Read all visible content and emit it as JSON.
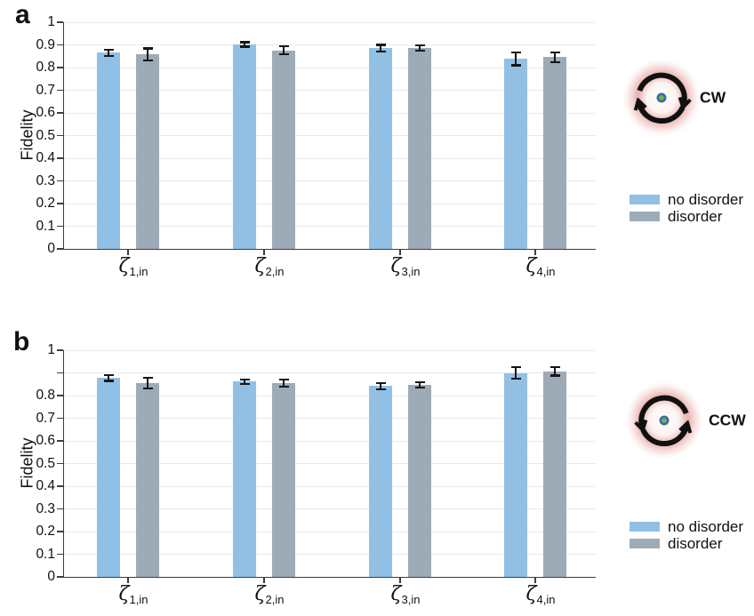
{
  "figure_type": "two-panel grouped bar chart with error bars",
  "error_bar_color": "#161616",
  "icons": {
    "cw": "circular-arrows-clockwise-with-red-glow",
    "ccw": "circular-arrows-counterclockwise-with-red-glow",
    "ring_color": "#111111",
    "glow_color": "#D5655F",
    "dot_outer_color": "#3D6CA5",
    "dot_inner_color": "#72B54A"
  },
  "chart_data": [
    {
      "type": "bar",
      "panel_label": "a",
      "rotation": "CW",
      "ylabel": "Fidelity",
      "ylim": [
        0,
        1
      ],
      "ytick_step": 0.1,
      "ytick_labels_top_down": [
        "1",
        "0.9",
        "0.8",
        "0.7",
        "0.6",
        "0.5",
        "0.4",
        "0.3",
        "0.2",
        "0.1",
        "0"
      ],
      "grid": true,
      "legend_position": "right",
      "categories": [
        {
          "base": "ζ",
          "sub": "1,in"
        },
        {
          "base": "ζ",
          "sub": "2,in"
        },
        {
          "base": "ζ",
          "sub": "3,in"
        },
        {
          "base": "ζ",
          "sub": "4,in"
        }
      ],
      "series": [
        {
          "name": "no disorder",
          "color": "#92C0E5",
          "values": [
            0.865,
            0.902,
            0.886,
            0.838
          ],
          "errors": [
            0.014,
            0.01,
            0.014,
            0.028
          ]
        },
        {
          "name": "disorder",
          "color": "#9DABB7",
          "values": [
            0.858,
            0.876,
            0.886,
            0.846
          ],
          "errors": [
            0.026,
            0.018,
            0.012,
            0.022
          ]
        }
      ]
    },
    {
      "type": "bar",
      "panel_label": "b",
      "rotation": "CCW",
      "ylabel": "Fidelity",
      "ylim": [
        0,
        1
      ],
      "ytick_step": 0.1,
      "ytick_labels_top_down": [
        "1",
        "",
        "0.8",
        "0.7",
        "0.6",
        "0.5",
        "0.4",
        "0.3",
        "0.2",
        "0.1",
        "0"
      ],
      "grid": true,
      "legend_position": "right",
      "categories": [
        {
          "base": "ζ",
          "sub": "1,in"
        },
        {
          "base": "ζ",
          "sub": "2,in"
        },
        {
          "base": "ζ",
          "sub": "3,in"
        },
        {
          "base": "ζ",
          "sub": "4,in"
        }
      ],
      "series": [
        {
          "name": "no disorder",
          "color": "#92C0E5",
          "values": [
            0.878,
            0.862,
            0.842,
            0.9
          ],
          "errors": [
            0.013,
            0.01,
            0.013,
            0.026
          ]
        },
        {
          "name": "disorder",
          "color": "#9DABB7",
          "values": [
            0.856,
            0.854,
            0.848,
            0.906
          ],
          "errors": [
            0.024,
            0.015,
            0.012,
            0.018
          ]
        }
      ]
    }
  ]
}
